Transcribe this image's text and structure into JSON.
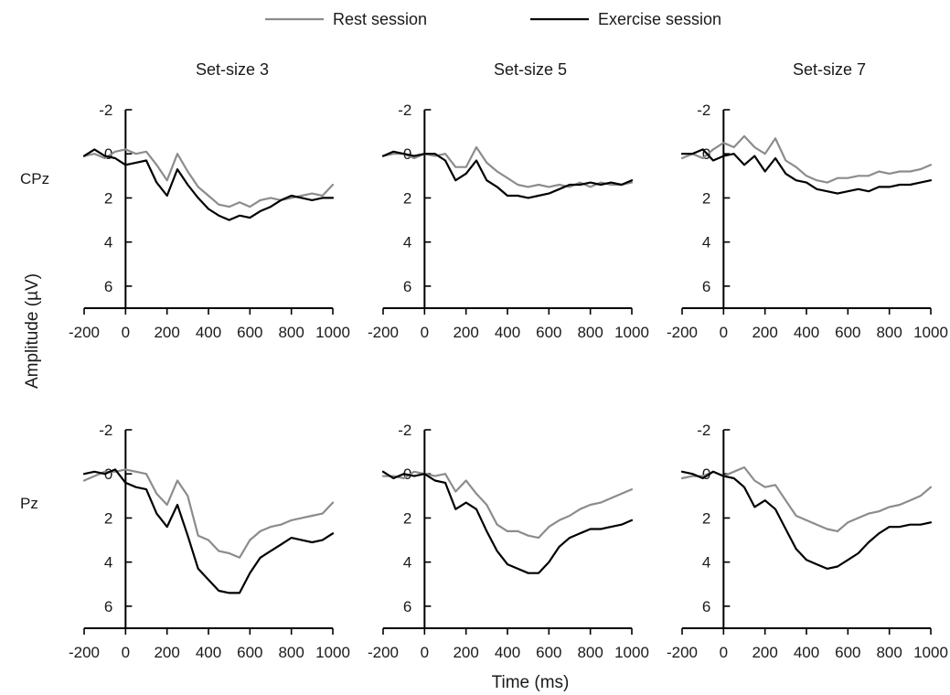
{
  "legend": [
    {
      "label": "Rest session",
      "color": "#8c8c8c"
    },
    {
      "label": "Exercise session",
      "color": "#000000"
    }
  ],
  "xlabel": "Time (ms)",
  "ylabel": "Amplitude (µV)",
  "column_titles": [
    "Set-size 3",
    "Set-size 5",
    "Set-size 7"
  ],
  "row_labels": [
    "CPz",
    "Pz"
  ],
  "chart_data": {
    "type": "line",
    "xlim": [
      -200,
      1000
    ],
    "ylim": [
      -2,
      7
    ],
    "y_inverted": true,
    "x_ticks": [
      -200,
      0,
      200,
      400,
      600,
      800,
      1000
    ],
    "y_ticks": [
      -2,
      0,
      2,
      4,
      6
    ],
    "grid": false,
    "legend_position": "top",
    "x": [
      -200,
      -150,
      -100,
      -50,
      0,
      50,
      100,
      150,
      200,
      250,
      300,
      350,
      400,
      450,
      500,
      550,
      600,
      650,
      700,
      750,
      800,
      850,
      900,
      950,
      1000
    ],
    "panels": [
      {
        "row": "CPz",
        "column": "Set-size 3",
        "series": [
          {
            "name": "Rest session",
            "values": [
              0.1,
              0.0,
              0.2,
              -0.1,
              -0.2,
              0.0,
              -0.1,
              0.5,
              1.2,
              0.0,
              0.8,
              1.5,
              1.9,
              2.3,
              2.4,
              2.2,
              2.4,
              2.1,
              2.0,
              2.1,
              2.0,
              1.9,
              1.8,
              1.9,
              1.4
            ]
          },
          {
            "name": "Exercise session",
            "values": [
              0.1,
              -0.2,
              0.1,
              0.2,
              0.5,
              0.4,
              0.3,
              1.3,
              1.9,
              0.7,
              1.4,
              2.0,
              2.5,
              2.8,
              3.0,
              2.8,
              2.9,
              2.6,
              2.4,
              2.1,
              1.9,
              2.0,
              2.1,
              2.0,
              2.0
            ]
          }
        ]
      },
      {
        "row": "CPz",
        "column": "Set-size 5",
        "series": [
          {
            "name": "Rest session",
            "values": [
              0.1,
              0.0,
              0.0,
              0.2,
              0.0,
              0.1,
              0.0,
              0.6,
              0.6,
              -0.3,
              0.4,
              0.8,
              1.1,
              1.4,
              1.5,
              1.4,
              1.5,
              1.4,
              1.5,
              1.3,
              1.5,
              1.3,
              1.4,
              1.4,
              1.3
            ]
          },
          {
            "name": "Exercise session",
            "values": [
              0.1,
              -0.1,
              0.0,
              0.1,
              0.0,
              0.0,
              0.3,
              1.2,
              0.9,
              0.3,
              1.2,
              1.5,
              1.9,
              1.9,
              2.0,
              1.9,
              1.8,
              1.6,
              1.4,
              1.4,
              1.3,
              1.4,
              1.3,
              1.4,
              1.2
            ]
          }
        ]
      },
      {
        "row": "CPz",
        "column": "Set-size 7",
        "series": [
          {
            "name": "Rest session",
            "values": [
              0.2,
              0.0,
              0.2,
              -0.2,
              -0.5,
              -0.3,
              -0.8,
              -0.3,
              0.0,
              -0.7,
              0.3,
              0.6,
              1.0,
              1.2,
              1.3,
              1.1,
              1.1,
              1.0,
              1.0,
              0.8,
              0.9,
              0.8,
              0.8,
              0.7,
              0.5
            ]
          },
          {
            "name": "Exercise session",
            "values": [
              0.0,
              0.0,
              -0.2,
              0.3,
              0.1,
              0.0,
              0.5,
              0.1,
              0.8,
              0.2,
              0.9,
              1.2,
              1.3,
              1.6,
              1.7,
              1.8,
              1.7,
              1.6,
              1.7,
              1.5,
              1.5,
              1.4,
              1.4,
              1.3,
              1.2
            ]
          }
        ]
      },
      {
        "row": "Pz",
        "column": "Set-size 3",
        "series": [
          {
            "name": "Rest session",
            "values": [
              0.3,
              0.1,
              -0.1,
              -0.1,
              -0.2,
              -0.1,
              0.0,
              0.9,
              1.4,
              0.3,
              1.0,
              2.8,
              3.0,
              3.5,
              3.6,
              3.8,
              3.0,
              2.6,
              2.4,
              2.3,
              2.1,
              2.0,
              1.9,
              1.8,
              1.3
            ]
          },
          {
            "name": "Exercise session",
            "values": [
              0.0,
              -0.1,
              0.0,
              -0.2,
              0.4,
              0.6,
              0.7,
              1.8,
              2.4,
              1.4,
              2.8,
              4.3,
              4.8,
              5.3,
              5.4,
              5.4,
              4.5,
              3.8,
              3.5,
              3.2,
              2.9,
              3.0,
              3.1,
              3.0,
              2.7
            ]
          }
        ]
      },
      {
        "row": "Pz",
        "column": "Set-size 5",
        "series": [
          {
            "name": "Rest session",
            "values": [
              0.1,
              0.1,
              0.2,
              -0.1,
              0.0,
              0.1,
              0.0,
              0.8,
              0.3,
              0.9,
              1.4,
              2.3,
              2.6,
              2.6,
              2.8,
              2.9,
              2.4,
              2.1,
              1.9,
              1.6,
              1.4,
              1.3,
              1.1,
              0.9,
              0.7
            ]
          },
          {
            "name": "Exercise session",
            "values": [
              -0.1,
              0.2,
              0.0,
              0.1,
              0.0,
              0.3,
              0.4,
              1.6,
              1.3,
              1.6,
              2.6,
              3.5,
              4.1,
              4.3,
              4.5,
              4.5,
              4.0,
              3.3,
              2.9,
              2.7,
              2.5,
              2.5,
              2.4,
              2.3,
              2.1
            ]
          }
        ]
      },
      {
        "row": "Pz",
        "column": "Set-size 7",
        "series": [
          {
            "name": "Rest session",
            "values": [
              0.2,
              0.1,
              0.1,
              -0.1,
              0.1,
              -0.1,
              -0.3,
              0.3,
              0.6,
              0.5,
              1.2,
              1.9,
              2.1,
              2.3,
              2.5,
              2.6,
              2.2,
              2.0,
              1.8,
              1.7,
              1.5,
              1.4,
              1.2,
              1.0,
              0.6
            ]
          },
          {
            "name": "Exercise session",
            "values": [
              -0.1,
              0.0,
              0.2,
              -0.1,
              0.1,
              0.2,
              0.6,
              1.5,
              1.2,
              1.6,
              2.5,
              3.4,
              3.9,
              4.1,
              4.3,
              4.2,
              3.9,
              3.6,
              3.1,
              2.7,
              2.4,
              2.4,
              2.3,
              2.3,
              2.2
            ]
          }
        ]
      }
    ]
  }
}
